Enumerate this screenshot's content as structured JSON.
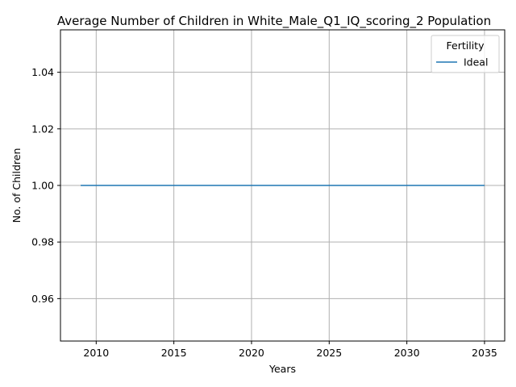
{
  "chart_data": {
    "type": "line",
    "title": "Average Number of Children in White_Male_Q1_IQ_scoring_2 Population",
    "xlabel": "Years",
    "ylabel": "No. of Children",
    "xlim": [
      2007.7,
      2036.3
    ],
    "ylim": [
      0.945,
      1.055
    ],
    "xticks": [
      2010,
      2015,
      2020,
      2025,
      2030,
      2035
    ],
    "yticks": [
      0.96,
      0.98,
      1.0,
      1.02,
      1.04
    ],
    "ytick_labels": [
      "0.96",
      "0.98",
      "1.00",
      "1.02",
      "1.04"
    ],
    "grid": true,
    "legend": {
      "title": "Fertility",
      "placement": "top-right"
    },
    "series": [
      {
        "name": "Ideal",
        "color": "#1f77b4",
        "x": [
          2009,
          2010,
          2011,
          2012,
          2013,
          2014,
          2015,
          2016,
          2017,
          2018,
          2019,
          2020,
          2021,
          2022,
          2023,
          2024,
          2025,
          2026,
          2027,
          2028,
          2029,
          2030,
          2031,
          2032,
          2033,
          2034,
          2035
        ],
        "y": [
          1,
          1,
          1,
          1,
          1,
          1,
          1,
          1,
          1,
          1,
          1,
          1,
          1,
          1,
          1,
          1,
          1,
          1,
          1,
          1,
          1,
          1,
          1,
          1,
          1,
          1,
          1
        ]
      }
    ]
  }
}
